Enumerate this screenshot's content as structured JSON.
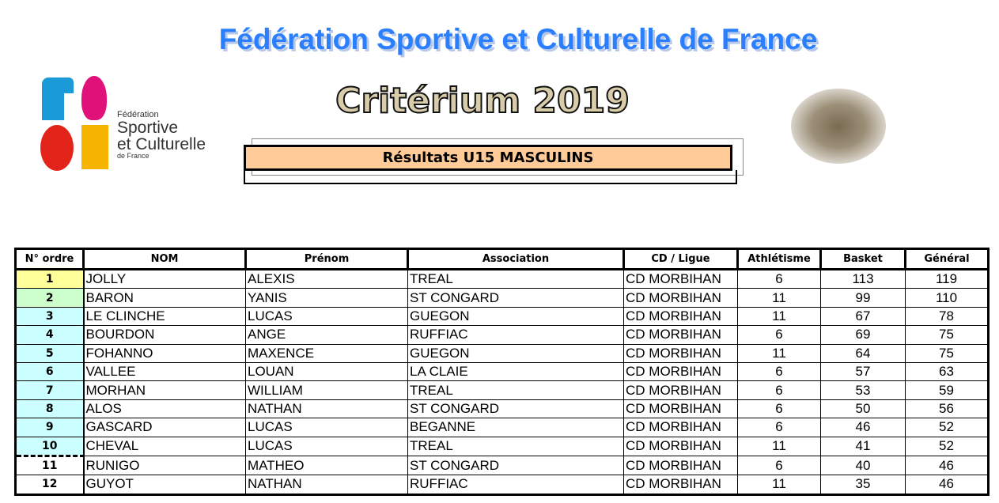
{
  "header": {
    "title": "Fédération Sportive et Culturelle de France",
    "subtitle": "Critérium 2019",
    "banner": "Résultats U15 MASCULINS"
  },
  "logo": {
    "line1": "Fédération",
    "line2": "Sportive",
    "line3": "et Culturelle",
    "line4": "de France",
    "colors": [
      "#1a9ad6",
      "#e0127a",
      "#e3241b",
      "#f6b400"
    ]
  },
  "table": {
    "headers": [
      "N° ordre",
      "NOM",
      "Prénom",
      "Association",
      "CD / Ligue",
      "Athlétisme",
      "Basket",
      "Général"
    ],
    "rows": [
      [
        "1",
        "JOLLY",
        "ALEXIS",
        "TREAL",
        "CD MORBIHAN",
        "6",
        "113",
        "119"
      ],
      [
        "2",
        "BARON",
        "YANIS",
        "ST CONGARD",
        "CD MORBIHAN",
        "11",
        "99",
        "110"
      ],
      [
        "3",
        "LE CLINCHE",
        "LUCAS",
        "GUEGON",
        "CD MORBIHAN",
        "11",
        "67",
        "78"
      ],
      [
        "4",
        "BOURDON",
        "ANGE",
        "RUFFIAC",
        "CD MORBIHAN",
        "6",
        "69",
        "75"
      ],
      [
        "5",
        "FOHANNO",
        "MAXENCE",
        "GUEGON",
        "CD MORBIHAN",
        "11",
        "64",
        "75"
      ],
      [
        "6",
        "VALLEE",
        "LOUAN",
        "LA CLAIE",
        "CD MORBIHAN",
        "6",
        "57",
        "63"
      ],
      [
        "7",
        "MORHAN",
        "WILLIAM",
        "TREAL",
        "CD MORBIHAN",
        "6",
        "53",
        "59"
      ],
      [
        "8",
        "ALOS",
        "NATHAN",
        "ST CONGARD",
        "CD MORBIHAN",
        "6",
        "50",
        "56"
      ],
      [
        "9",
        "GASCARD",
        "LUCAS",
        "BEGANNE",
        "CD MORBIHAN",
        "6",
        "46",
        "52"
      ],
      [
        "10",
        "CHEVAL",
        "LUCAS",
        "TREAL",
        "CD MORBIHAN",
        "11",
        "41",
        "52"
      ],
      [
        "11",
        "RUNIGO",
        "MATHEO",
        "ST CONGARD",
        "CD MORBIHAN",
        "6",
        "40",
        "46"
      ],
      [
        "12",
        "GUYOT",
        "NATHAN",
        "RUFFIAC",
        "CD MORBIHAN",
        "11",
        "35",
        "46"
      ]
    ]
  }
}
